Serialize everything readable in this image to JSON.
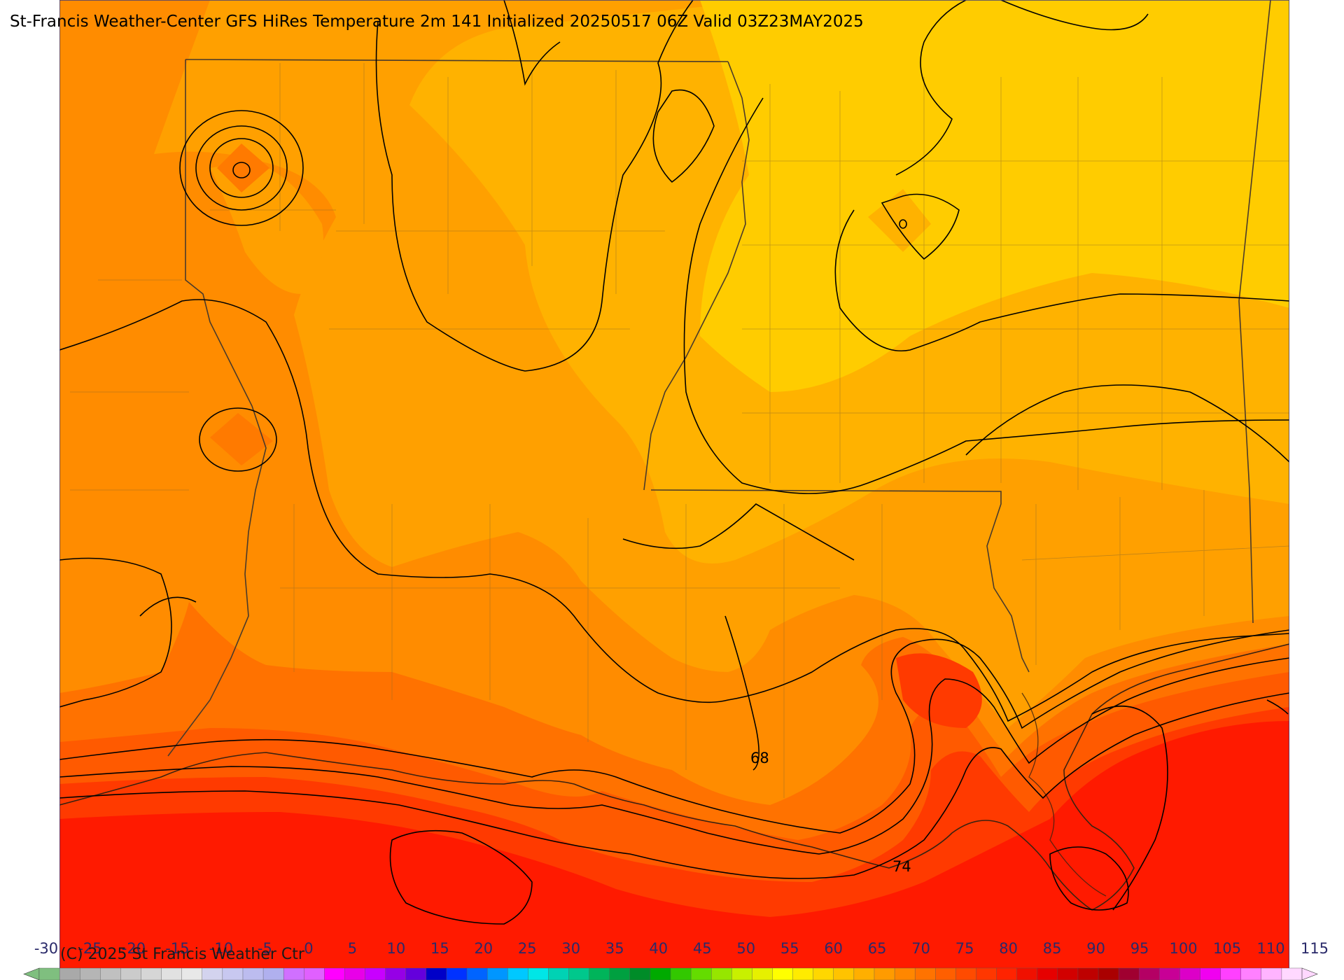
{
  "header": {
    "title": "St-Francis Weather-Center GFS HiRes Temperature 2m  141 Initialized 20250517 06Z Valid 03Z23MAY2025"
  },
  "footer": {
    "copyright": "(C) 2025 St Francis Weather Ctr"
  },
  "contour_labels": [
    "68",
    "74"
  ],
  "legend": {
    "ticks": [
      "-30",
      "-25",
      "-20",
      "-15",
      "-10",
      "-5",
      "0",
      "5",
      "10",
      "15",
      "20",
      "25",
      "30",
      "35",
      "40",
      "45",
      "50",
      "55",
      "60",
      "65",
      "70",
      "75",
      "80",
      "85",
      "90",
      "95",
      "100",
      "105",
      "110",
      "115"
    ],
    "colors": [
      "#7fbf7f",
      "#a9a9a9",
      "#b5b5b5",
      "#c0c0c0",
      "#cbcbcb",
      "#d6d6d6",
      "#e1e1e1",
      "#e8e8e8",
      "#d3d3ee",
      "#c8c8f0",
      "#bcbcef",
      "#b0b0ee",
      "#d070ff",
      "#e060ff",
      "#ff00ff",
      "#e800e8",
      "#c800ff",
      "#9600e6",
      "#6400dc",
      "#0000c8",
      "#0032ff",
      "#0064ff",
      "#0096ff",
      "#00c8ff",
      "#00e6e6",
      "#00d2b4",
      "#00c88c",
      "#00b45a",
      "#00a040",
      "#008c28",
      "#00aa00",
      "#32c800",
      "#64dc00",
      "#96e600",
      "#c8f000",
      "#e6f000",
      "#ffff00",
      "#ffeb00",
      "#ffd700",
      "#ffc300",
      "#ffaf00",
      "#ff9b00",
      "#ff8700",
      "#ff7300",
      "#ff5f00",
      "#ff4b00",
      "#ff3700",
      "#ff2300",
      "#f01000",
      "#e60000",
      "#d20000",
      "#be0000",
      "#aa0000",
      "#a00030",
      "#b40064",
      "#c80096",
      "#dc00c8",
      "#f000f0",
      "#ff40ff",
      "#ff80ff",
      "#ffb4ff",
      "#ffd8ff"
    ],
    "range": [
      -30,
      115
    ]
  }
}
